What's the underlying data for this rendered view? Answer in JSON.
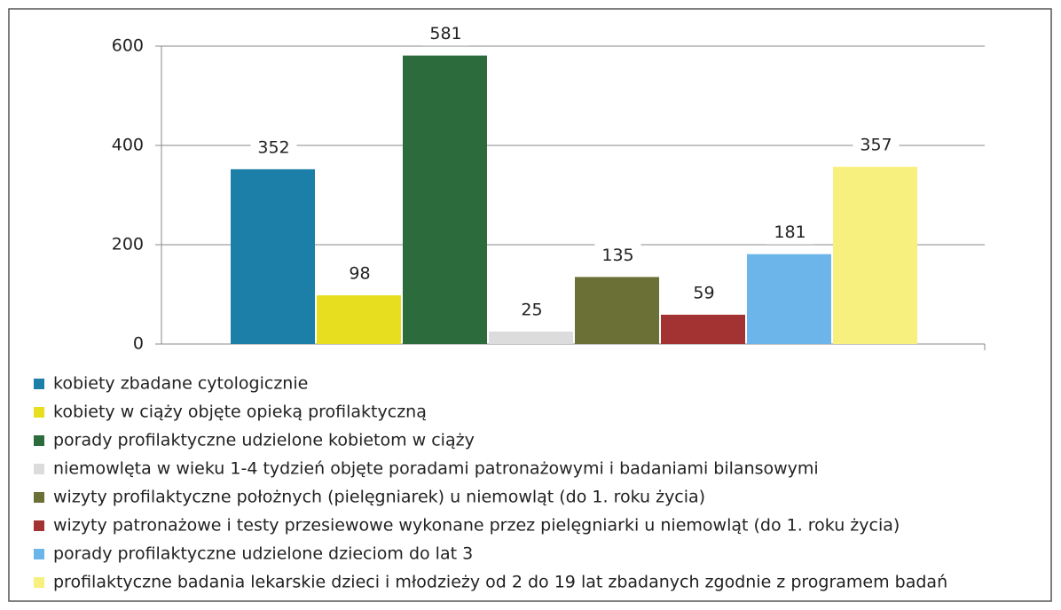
{
  "chart_data": {
    "type": "bar",
    "series": [
      {
        "name": "kobiety zbadane cytologicznie",
        "color": "#1b7fa8",
        "values": [
          352
        ]
      },
      {
        "name": "kobiety w ciąży objęte opieką profilaktyczną",
        "color": "#e6de1e",
        "values": [
          98
        ]
      },
      {
        "name": "porady profilaktyczne udzielone kobietom w ciąży",
        "color": "#2b6b3c",
        "values": [
          581
        ]
      },
      {
        "name": "niemowlęta w wieku 1-4 tydzień objęte poradami patronażowymi i badaniami bilansowymi",
        "color": "#dcdcdc",
        "values": [
          25
        ]
      },
      {
        "name": "wizyty profilaktyczne położnych (pielęgniarek) u niemowląt (do 1. roku życia)",
        "color": "#6b7136",
        "values": [
          135
        ]
      },
      {
        "name": "wizyty patronażowe i testy przesiewowe wykonane przez pielęgniarki u niemowląt (do 1. roku życia)",
        "color": "#a33232",
        "values": [
          59
        ]
      },
      {
        "name": "porady profilaktyczne udzielone dzieciom do lat 3",
        "color": "#6cb5ea",
        "values": [
          181
        ]
      },
      {
        "name": "profilaktyczne badania lekarskie dzieci i młodzieży od 2 do 19 lat zbadanych zgodnie z programem badań",
        "color": "#f7f07e",
        "values": [
          357
        ]
      }
    ],
    "ylim": [
      0,
      600
    ],
    "yticks": [
      0,
      200,
      400,
      600
    ],
    "grid": true,
    "legend": "bottom"
  }
}
